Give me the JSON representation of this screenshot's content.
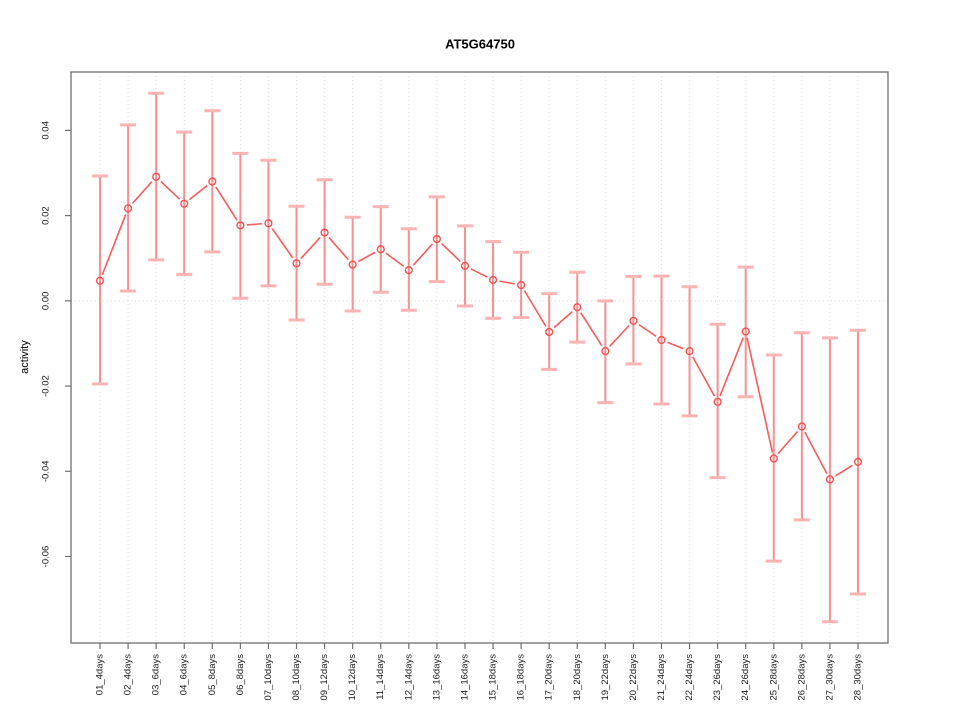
{
  "chart_data": {
    "type": "line",
    "title": "AT5G64750",
    "ylabel": "activity",
    "xlabel": "",
    "categories": [
      "01_4days",
      "02_4days",
      "03_6days",
      "04_6days",
      "05_8days",
      "06_8days",
      "07_10days",
      "08_10days",
      "09_12days",
      "10_12days",
      "11_14days",
      "12_14days",
      "13_16days",
      "14_16days",
      "15_18days",
      "16_18days",
      "17_20days",
      "18_20days",
      "19_22days",
      "20_22days",
      "21_24days",
      "22_24days",
      "23_26days",
      "24_26days",
      "25_28days",
      "26_28days",
      "27_30days",
      "28_30days"
    ],
    "series": [
      {
        "name": "activity",
        "mean": [
          0.0047,
          0.0217,
          0.0291,
          0.0228,
          0.028,
          0.0177,
          0.0182,
          0.0088,
          0.016,
          0.0085,
          0.0121,
          0.0072,
          0.0145,
          0.0082,
          0.0049,
          0.0037,
          -0.0073,
          -0.0015,
          -0.0118,
          -0.0047,
          -0.0092,
          -0.0118,
          -0.0237,
          -0.0072,
          -0.037,
          -0.0295,
          -0.0419,
          -0.0378
        ],
        "upper": [
          0.0293,
          0.0413,
          0.0487,
          0.0396,
          0.0446,
          0.0346,
          0.033,
          0.0222,
          0.0284,
          0.0196,
          0.0221,
          0.0169,
          0.0244,
          0.0176,
          0.0139,
          0.0114,
          0.0017,
          0.0067,
          0.0,
          0.0057,
          0.0058,
          0.0033,
          -0.0055,
          0.0079,
          -0.0127,
          -0.0075,
          -0.0087,
          -0.0069
        ],
        "lower": [
          -0.0195,
          0.0023,
          0.0096,
          0.0062,
          0.0115,
          0.0006,
          0.0035,
          -0.0045,
          0.0039,
          -0.0024,
          0.002,
          -0.0022,
          0.0045,
          -0.0012,
          -0.0041,
          -0.0039,
          -0.0161,
          -0.0097,
          -0.0239,
          -0.0148,
          -0.0242,
          -0.027,
          -0.0415,
          -0.0225,
          -0.0611,
          -0.0514,
          -0.0753,
          -0.0688
        ]
      }
    ],
    "yticks": [
      0.04,
      0.02,
      0,
      -0.02,
      -0.04,
      -0.06
    ],
    "ytick_labels": [
      "0.04",
      "0.02",
      "0.00",
      "-0.02",
      "-0.04",
      "-0.06"
    ],
    "ylim": [
      -0.0803,
      0.0537
    ],
    "grid": {
      "vertical_gridlines": true,
      "zero_line": true,
      "horizontal_gridlines": false
    },
    "legend": "none",
    "colors": {
      "point": "#f44f4f",
      "line": "#f75b5b",
      "stem": "#f98f8f",
      "cap": "#fbb3b3",
      "grid": "#dcdcdc",
      "frame": "#6e6e6e",
      "text": "#1a1a1a",
      "background": "#ffffff"
    }
  }
}
